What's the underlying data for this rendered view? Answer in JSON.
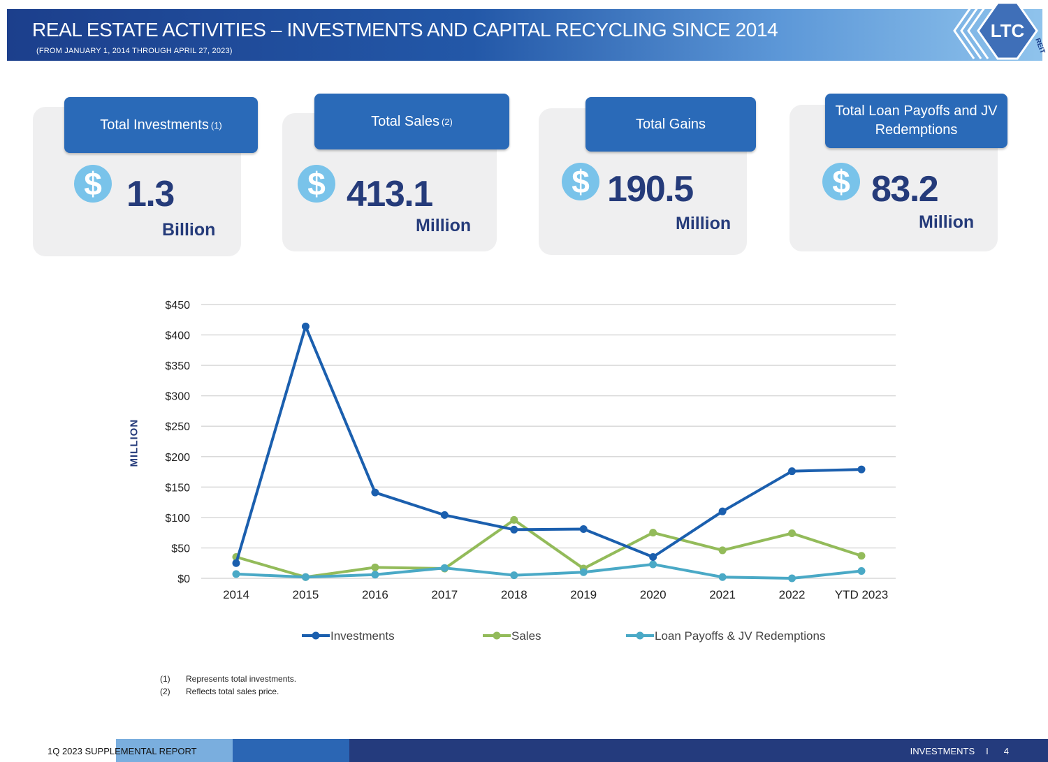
{
  "header": {
    "title": "REAL ESTATE ACTIVITIES – INVESTMENTS AND CAPITAL RECYCLING SINCE 2014",
    "subtitle": "(FROM JANUARY 1, 2014 THROUGH APRIL 27, 2023)",
    "logo_text": "LTC",
    "logo_sub": "REIT"
  },
  "kpis": [
    {
      "label": "Total Investments",
      "note": "(1)",
      "symbol": "$",
      "value": "1.3",
      "unit": "Billion"
    },
    {
      "label": "Total Sales",
      "note": "(2)",
      "symbol": "$",
      "value": "413.1",
      "unit": "Million"
    },
    {
      "label": "Total Gains",
      "note": "",
      "symbol": "$",
      "value": "190.5",
      "unit": "Million"
    },
    {
      "label": "Total Loan Payoffs and JV Redemptions",
      "note": "",
      "symbol": "$",
      "value": "83.2",
      "unit": "Million"
    }
  ],
  "chart_data": {
    "type": "line",
    "title": "",
    "xlabel": "",
    "ylabel": "MILLION",
    "ylim": [
      0,
      450
    ],
    "yticks": [
      0,
      50,
      100,
      150,
      200,
      250,
      300,
      350,
      400,
      450
    ],
    "ytick_labels": [
      "$0",
      "$50",
      "$100",
      "$150",
      "$200",
      "$250",
      "$300",
      "$350",
      "$400",
      "$450"
    ],
    "categories": [
      "2014",
      "2015",
      "2016",
      "2017",
      "2018",
      "2019",
      "2020",
      "2021",
      "2022",
      "YTD 2023"
    ],
    "grid": true,
    "legend": "bottom",
    "series": [
      {
        "name": "Investments",
        "color": "#1b5fae",
        "values": [
          25,
          414,
          141,
          104,
          80,
          81,
          35,
          110,
          176,
          179
        ]
      },
      {
        "name": "Sales",
        "color": "#93bb5a",
        "values": [
          35,
          2,
          18,
          16,
          96,
          16,
          75,
          46,
          74,
          37
        ]
      },
      {
        "name": "Loan Payoffs & JV Redemptions",
        "color": "#4aa9c6",
        "values": [
          7,
          2,
          6,
          17,
          5,
          10,
          23,
          2,
          0,
          12
        ]
      }
    ]
  },
  "footnotes": [
    {
      "num": "(1)",
      "text": "Represents total investments."
    },
    {
      "num": "(2)",
      "text": "Reflects total sales price."
    }
  ],
  "footer": {
    "report": "1Q 2023 SUPPLEMENTAL REPORT",
    "section": "INVESTMENTS",
    "separator": "I",
    "page": "4"
  }
}
